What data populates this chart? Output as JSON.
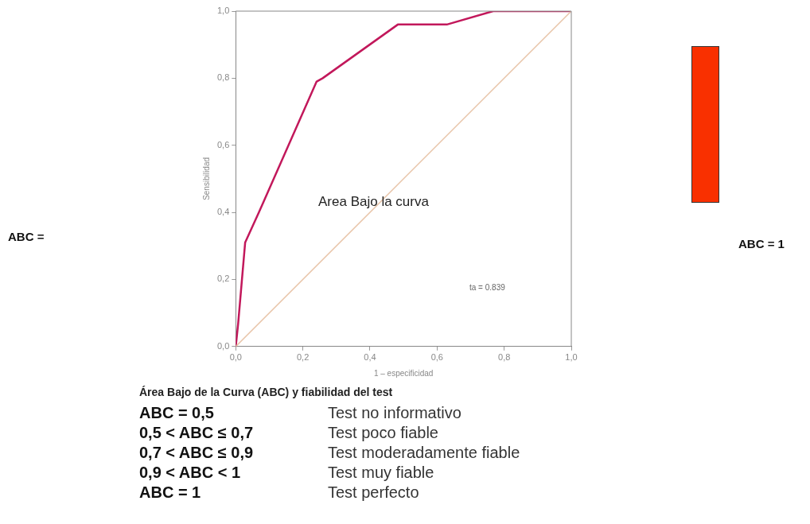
{
  "chart_data": {
    "type": "line",
    "xlabel": "1 – especificidad",
    "ylabel": "Sensibilidad",
    "series": [
      {
        "color": "#c2185b",
        "x": [
          0,
          0.007,
          0.028,
          0.069,
          0.241,
          0.259,
          0.483,
          0.629,
          0.767,
          1
        ],
        "values": [
          0,
          0.067,
          0.31,
          0.4,
          0.79,
          0.8,
          0.96,
          0.96,
          1.0,
          1.0
        ]
      },
      {
        "color": "#e8c4a8",
        "x": [
          0,
          1
        ],
        "values": [
          0,
          1
        ]
      }
    ],
    "xlim": [
      0,
      1
    ],
    "ylim": [
      0,
      1
    ],
    "xticks": [
      {
        "value": 0,
        "label": "0,0"
      },
      {
        "value": 0.2,
        "label": "0,2"
      },
      {
        "value": 0.4,
        "label": "0,4"
      },
      {
        "value": 0.6,
        "label": "0,6"
      },
      {
        "value": 0.8,
        "label": "0,8"
      },
      {
        "value": 1,
        "label": "1,0"
      }
    ],
    "yticks": [
      {
        "value": 0,
        "label": "0,0"
      },
      {
        "value": 0.2,
        "label": "0,2"
      },
      {
        "value": 0.4,
        "label": "0,4"
      },
      {
        "value": 0.6,
        "label": "0,6"
      },
      {
        "value": 0.8,
        "label": "0,8"
      },
      {
        "value": 1,
        "label": "1,0"
      }
    ],
    "grid": false,
    "legend": false,
    "marker": "none",
    "line_style": "solid",
    "annotations": [
      "Area Bajo la curva",
      "ta = 0.839",
      "ABC =",
      "ABC = 1",
      "Área Bajo de la Curva (ABC) y fiabilidad del test",
      "ABC = 0,5",
      "Test no informativo",
      "0,5 <  ABC ≤ 0,7",
      "Test poco fiable",
      "0,7 <  ABC ≤ 0,9",
      "Test moderadamente fiable",
      "0,9 <  ABC < 1",
      "Test muy fiable",
      "ABC = 1",
      "Test perfecto"
    ]
  }
}
